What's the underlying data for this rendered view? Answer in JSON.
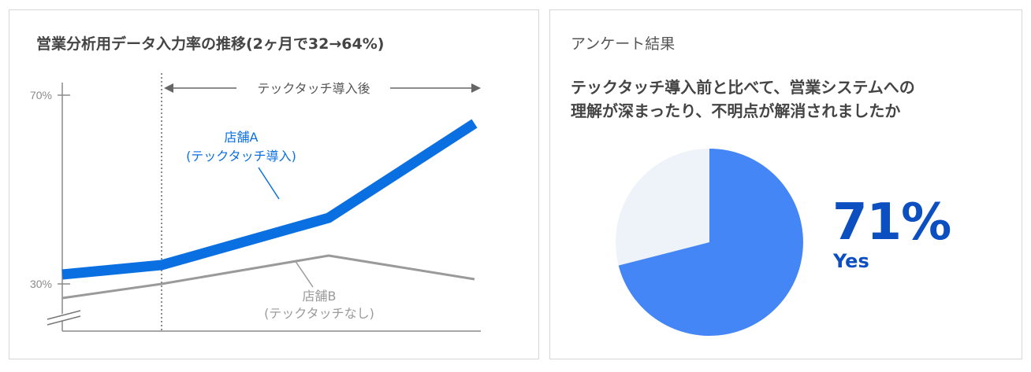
{
  "left": {
    "title": "営業分析用データ入力率の推移(2ヶ月で32→64%)"
  },
  "right": {
    "title": "アンケート結果",
    "question_line1": "テックタッチ導入前と比べて、営業システムへの",
    "question_line2": "理解が深まったり、不明点が解消されましたか",
    "percent_label": "71%",
    "yes_label": "Yes"
  },
  "colors": {
    "store_a": "#0a6fe0",
    "store_b": "#9a9a9a",
    "pie_yes": "#4486f5",
    "pie_other": "#eef2f9",
    "accent_text": "#0b4fc0"
  },
  "chart_data": [
    {
      "type": "line",
      "title": "営業分析用データ入力率の推移(2ヶ月で32→64%)",
      "y_ticks": [
        "70%",
        "30%"
      ],
      "y_tick_values": [
        70,
        30
      ],
      "axis_break": true,
      "annotation": "テックタッチ導入後",
      "x": [
        0,
        1,
        2,
        3
      ],
      "series": [
        {
          "name": "店舗A",
          "name_line2": "(テックタッチ導入)",
          "values": [
            32,
            34,
            44,
            64
          ]
        },
        {
          "name": "店舗B",
          "name_line2": "(テックタッチなし)",
          "values": [
            27,
            30,
            36,
            31
          ]
        }
      ],
      "intervention_x": 1
    },
    {
      "type": "pie",
      "title": "アンケート結果",
      "slices": [
        {
          "label": "Yes",
          "value": 71
        },
        {
          "label": "",
          "value": 29
        }
      ]
    }
  ]
}
